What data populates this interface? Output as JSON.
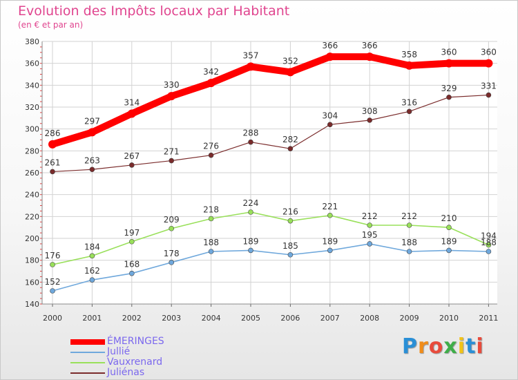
{
  "title": "Evolution des Impôts locaux par Habitant",
  "subtitle": "(en € et par an)",
  "brand": {
    "letters": [
      "P",
      "r",
      "o",
      "x",
      "i",
      "t",
      "i"
    ],
    "colors": [
      "#2a8fd6",
      "#f08c1a",
      "#e84b3c",
      "#3fae49",
      "#f2c318",
      "#2a8fd6",
      "#e84b3c"
    ]
  },
  "chart_data": {
    "type": "line",
    "x": [
      "2000",
      "2001",
      "2002",
      "2003",
      "2004",
      "2005",
      "2006",
      "2007",
      "2008",
      "2009",
      "2010",
      "2011"
    ],
    "ylim": [
      140,
      380
    ],
    "yticks": [
      140,
      160,
      180,
      200,
      220,
      240,
      260,
      280,
      300,
      320,
      340,
      360,
      380
    ],
    "grid": true,
    "legend_position": "bottom-left",
    "series": [
      {
        "name": "ÉMERINGES",
        "color": "#ff0000",
        "values": [
          286,
          297,
          314,
          330,
          342,
          357,
          352,
          366,
          366,
          358,
          360,
          360
        ]
      },
      {
        "name": "Jullié",
        "color": "#6fa8dc",
        "values": [
          152,
          162,
          168,
          178,
          188,
          189,
          185,
          189,
          195,
          188,
          189,
          188
        ]
      },
      {
        "name": "Vauxrenard",
        "color": "#99e05a",
        "values": [
          176,
          184,
          197,
          209,
          218,
          224,
          216,
          221,
          212,
          212,
          210,
          194
        ]
      },
      {
        "name": "Juliénas",
        "color": "#7a2b2b",
        "values": [
          261,
          263,
          267,
          271,
          276,
          288,
          282,
          304,
          308,
          316,
          329,
          331
        ]
      }
    ]
  }
}
